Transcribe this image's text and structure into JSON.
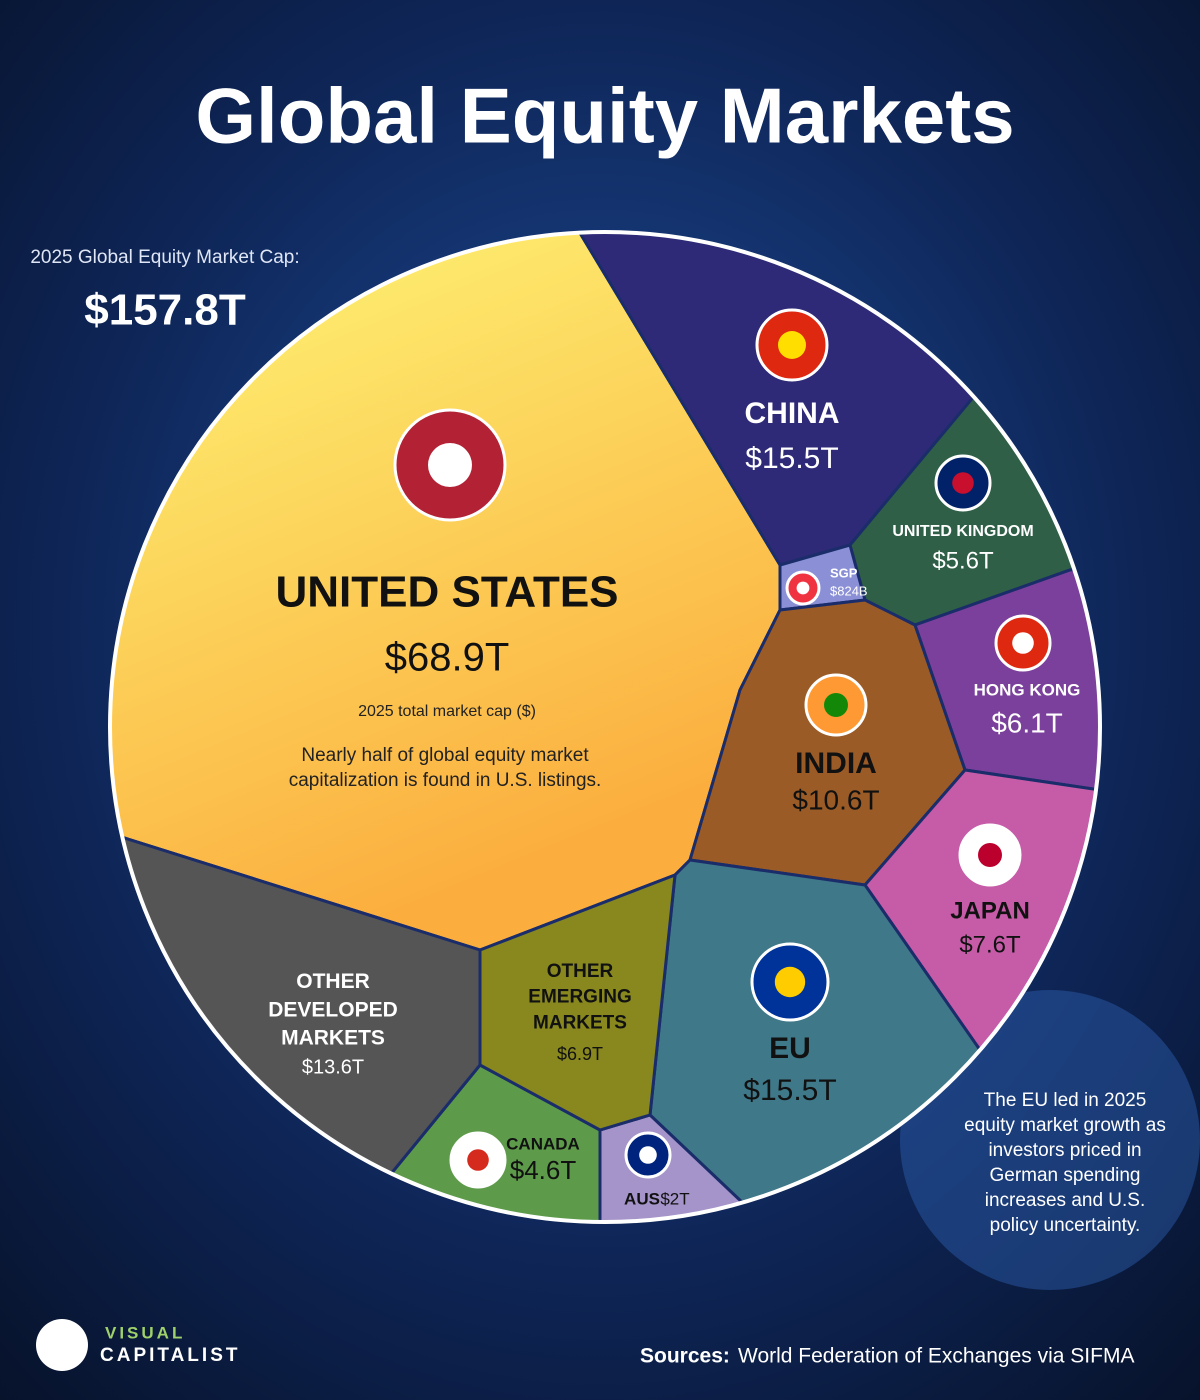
{
  "chart_data": {
    "type": "voronoi",
    "title": "Global Equity Markets",
    "subtitle": "2025 Global Equity Market Cap:",
    "total": "$157.8T",
    "categories": [
      "UNITED STATES",
      "CHINA",
      "UNITED KINGDOM",
      "SGP",
      "HONG KONG",
      "INDIA",
      "JAPAN",
      "EU",
      "AUS",
      "CANADA",
      "OTHER EMERGING MARKETS",
      "OTHER DEVELOPED MARKETS"
    ],
    "values": [
      68.9,
      15.5,
      5.6,
      0.824,
      6.1,
      10.6,
      7.6,
      15.5,
      2,
      4.6,
      6.9,
      13.6
    ],
    "value_labels": [
      "$68.9T",
      "$15.5T",
      "$5.6T",
      "$824B",
      "$6.1T",
      "$10.6T",
      "$7.6T",
      "$15.5T",
      "$2T",
      "$4.6T",
      "$6.9T",
      "$13.6T"
    ],
    "colors": [
      "#fde462",
      "#2e2a78",
      "#2f5f47",
      "#8a8fd6",
      "#7b409b",
      "#9a5b27",
      "#c65ba8",
      "#3f7889",
      "#a594c9",
      "#5d9b4b",
      "#88881f",
      "#555555"
    ],
    "us_caption": "2025 total market cap ($)",
    "us_note": "Nearly half of global equity market capitalization is found in U.S. listings.",
    "eu_note": "The EU led in 2025 equity market growth as investors priced in German spending increases and U.S. policy uncertainty.",
    "source_label": "Sources:",
    "source": "World Federation of Exchanges via SIFMA",
    "logo_top": "VISUAL",
    "logo_bottom": "CAPITALIST"
  }
}
